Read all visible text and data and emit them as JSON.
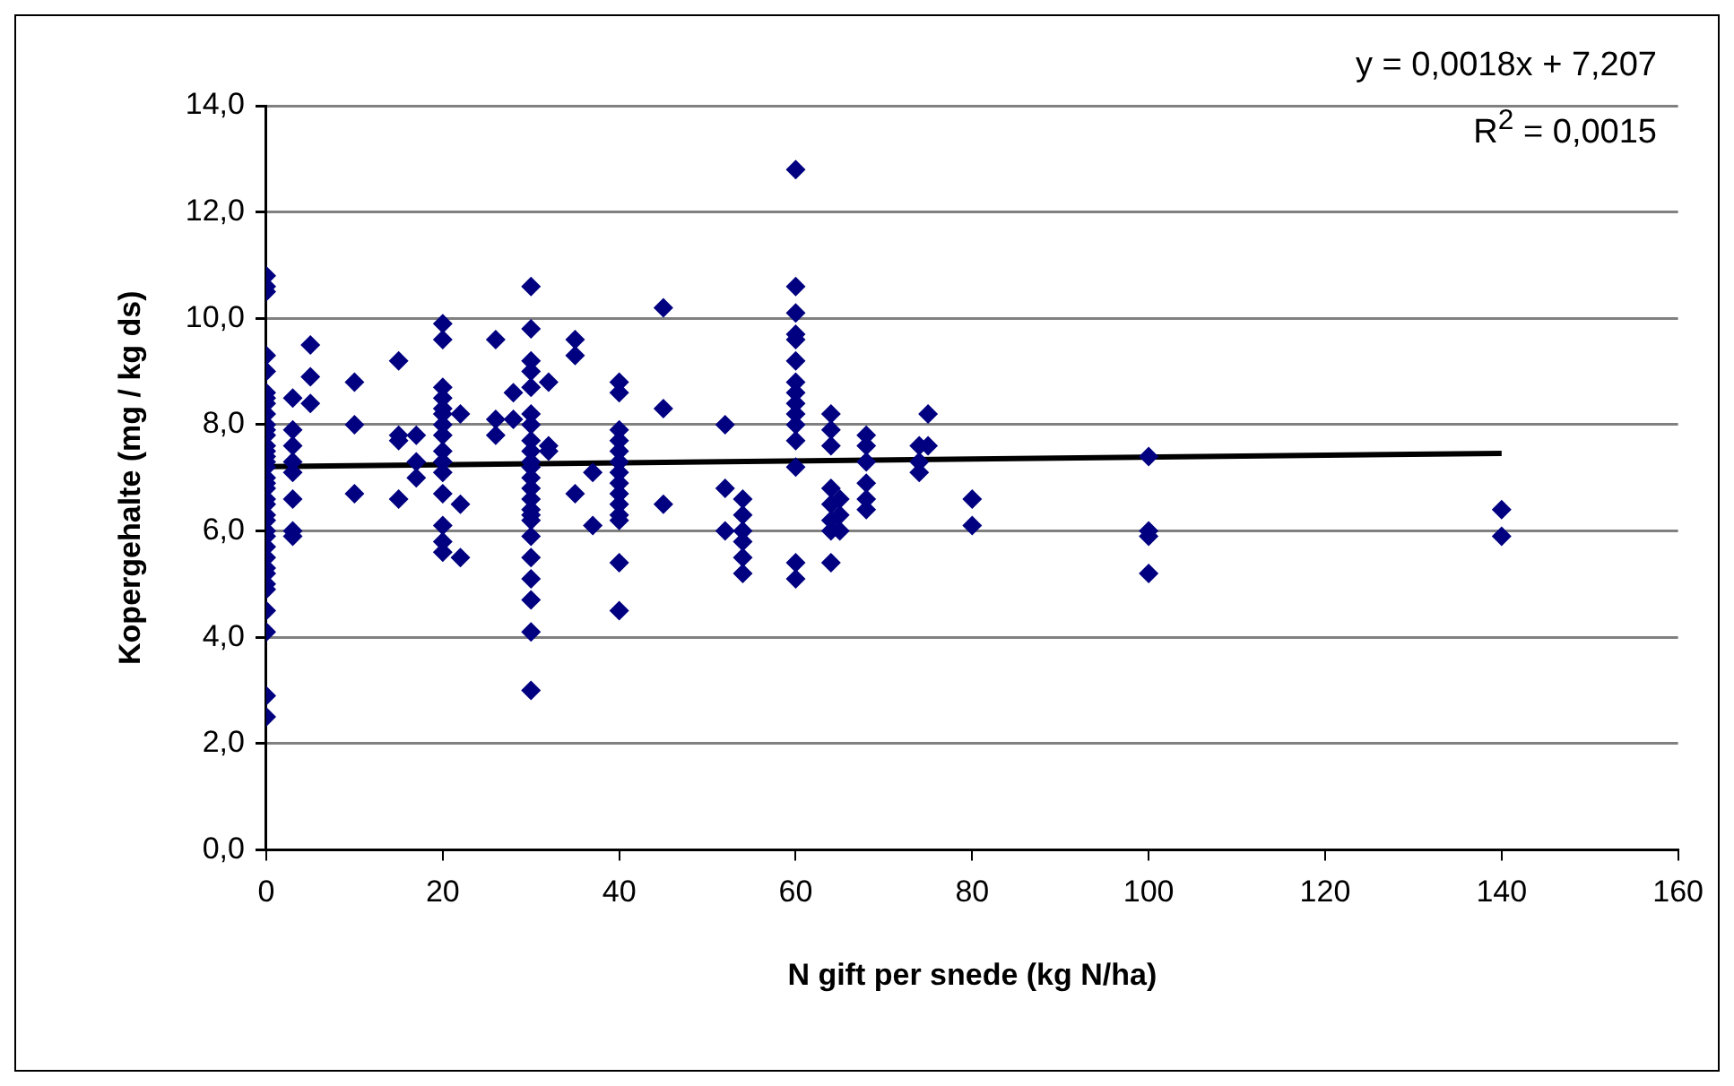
{
  "chart_data": {
    "type": "scatter",
    "xlabel": "N gift per snede (kg N/ha)",
    "ylabel": "Kopergehalte (mg / kg ds)",
    "xlim": [
      0,
      160
    ],
    "xticks": [
      0,
      20,
      40,
      60,
      80,
      100,
      120,
      140,
      160
    ],
    "ylim": [
      0,
      14
    ],
    "yticks": [
      {
        "value": 0,
        "label": "0,0"
      },
      {
        "value": 2,
        "label": "2,0"
      },
      {
        "value": 4,
        "label": "4,0"
      },
      {
        "value": 6,
        "label": "6,0"
      },
      {
        "value": 8,
        "label": "8,0"
      },
      {
        "value": 10,
        "label": "10,0"
      },
      {
        "value": 12,
        "label": "12,0"
      },
      {
        "value": 14,
        "label": "14,0"
      }
    ],
    "grid": "y",
    "legend": false,
    "annotations": [
      "y = 0,0018x + 7,207",
      "R$^{2}$ = 0,0015"
    ],
    "series": [
      {
        "type": "scatter",
        "marker": "diamond",
        "color": "#000080",
        "x": [
          0,
          0,
          0,
          0,
          0,
          0,
          0,
          0,
          0,
          0,
          0,
          0,
          0,
          0,
          0,
          0,
          0,
          0,
          0,
          0,
          0,
          0,
          0,
          0,
          0,
          0,
          0,
          0,
          0,
          0,
          0,
          0,
          0,
          0,
          0,
          0,
          3,
          3,
          3,
          3,
          3,
          3,
          3,
          3,
          5,
          5,
          5,
          10,
          10,
          10,
          15,
          15,
          15,
          15,
          17,
          17,
          17,
          20,
          20,
          20,
          20,
          20,
          20,
          20,
          20,
          20,
          20,
          20,
          20,
          20,
          20,
          20,
          22,
          22,
          22,
          26,
          26,
          26,
          28,
          28,
          30,
          30,
          30,
          30,
          30,
          30,
          30,
          30,
          30,
          30,
          30,
          30,
          30,
          30,
          30,
          30,
          30,
          30,
          30,
          30,
          30,
          30,
          30,
          32,
          32,
          32,
          35,
          35,
          35,
          37,
          37,
          40,
          40,
          40,
          40,
          40,
          40,
          40,
          40,
          40,
          40,
          40,
          40,
          40,
          40,
          45,
          45,
          45,
          52,
          52,
          52,
          54,
          54,
          54,
          54,
          54,
          54,
          60,
          60,
          60,
          60,
          60,
          60,
          60,
          60,
          60,
          60,
          60,
          60,
          60,
          60,
          60,
          64,
          64,
          64,
          64,
          64,
          64,
          64,
          64,
          65,
          65,
          65,
          68,
          68,
          68,
          68,
          68,
          68,
          74,
          74,
          74,
          75,
          75,
          80,
          80,
          100,
          100,
          100,
          100,
          140,
          140
        ],
        "values": [
          10.8,
          10.6,
          10.5,
          9.3,
          9.0,
          8.6,
          8.5,
          8.4,
          8.2,
          8.0,
          7.9,
          7.8,
          7.6,
          7.5,
          7.4,
          7.3,
          7.2,
          7.0,
          6.9,
          6.8,
          6.6,
          6.5,
          6.3,
          6.2,
          6.0,
          5.9,
          5.7,
          5.5,
          5.3,
          5.2,
          5.0,
          4.9,
          4.5,
          4.1,
          2.9,
          2.5,
          8.5,
          7.9,
          7.6,
          7.3,
          7.1,
          6.6,
          6.0,
          5.9,
          9.5,
          8.9,
          8.4,
          8.8,
          8.0,
          6.7,
          9.2,
          7.8,
          7.7,
          6.6,
          7.8,
          7.3,
          7.0,
          9.9,
          9.6,
          8.7,
          8.5,
          8.3,
          8.2,
          8.0,
          7.8,
          7.5,
          7.3,
          7.1,
          6.7,
          6.1,
          5.8,
          5.6,
          8.2,
          6.5,
          5.5,
          9.6,
          8.1,
          7.8,
          8.6,
          8.1,
          10.6,
          9.8,
          9.2,
          9.0,
          8.7,
          8.2,
          8.0,
          7.7,
          7.5,
          7.3,
          7.2,
          7.0,
          6.8,
          6.6,
          6.4,
          6.3,
          6.2,
          5.9,
          5.5,
          5.1,
          4.7,
          4.1,
          3.0,
          8.8,
          7.6,
          7.5,
          9.6,
          9.3,
          6.7,
          7.1,
          6.1,
          8.8,
          8.6,
          7.9,
          7.7,
          7.5,
          7.3,
          7.1,
          6.9,
          6.7,
          6.5,
          6.3,
          6.2,
          5.4,
          4.5,
          10.2,
          8.3,
          6.5,
          8.0,
          6.8,
          6.0,
          6.6,
          6.3,
          6.0,
          5.8,
          5.5,
          5.2,
          12.8,
          10.6,
          10.1,
          9.7,
          9.6,
          9.2,
          8.8,
          8.6,
          8.4,
          8.2,
          8.0,
          7.7,
          7.2,
          5.4,
          5.1,
          8.2,
          7.9,
          7.6,
          6.8,
          6.5,
          6.2,
          6.0,
          5.4,
          6.6,
          6.3,
          6.0,
          7.8,
          7.6,
          7.3,
          6.9,
          6.6,
          6.4,
          7.6,
          7.3,
          7.1,
          8.2,
          7.6,
          6.6,
          6.1,
          7.4,
          6.0,
          5.9,
          5.2,
          6.4,
          5.9
        ]
      },
      {
        "type": "line",
        "color": "#000000",
        "x": [
          0,
          140
        ],
        "values": [
          7.21,
          7.46
        ]
      }
    ]
  }
}
